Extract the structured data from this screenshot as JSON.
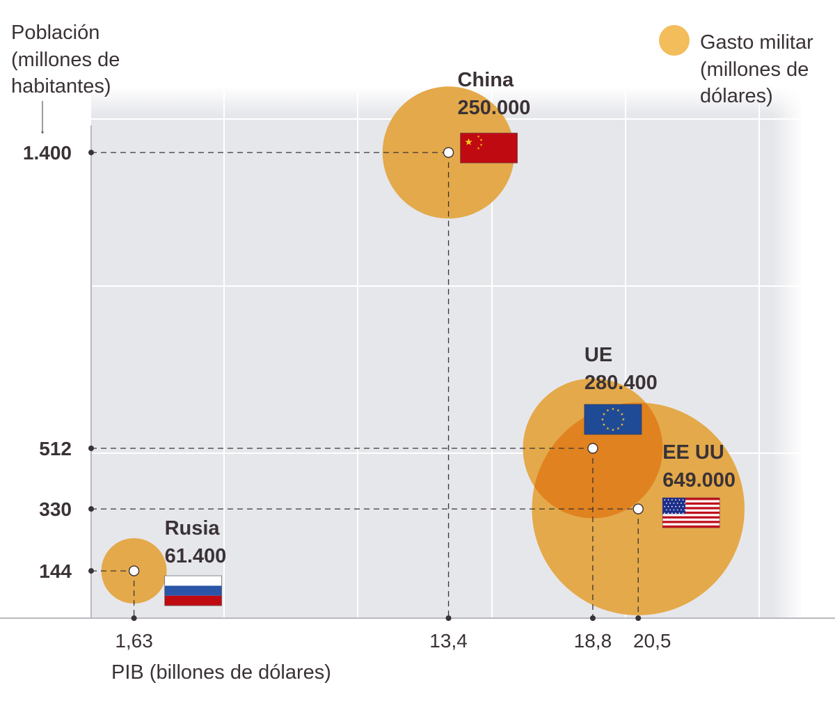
{
  "chart_data": {
    "type": "scatter",
    "subtype": "bubble",
    "title": "",
    "xlabel": "PIB (billones de dólares)",
    "ylabel": [
      "Población",
      "(millones de",
      "habitantes)"
    ],
    "size_legend": [
      "Gasto militar",
      "(millones de",
      "dólares)"
    ],
    "xlim": [
      0,
      26.3
    ],
    "ylim": [
      0,
      1580
    ],
    "grid": true,
    "legend_position": "top-right",
    "colors": {
      "bubble": "#e4a94a",
      "bubble_overlap": "#e0821f",
      "legend_dot": "#f3bd5c",
      "plot_bg": "#e6e7eb",
      "gridline": "#ffffff",
      "text": "#3a3236"
    },
    "points": [
      {
        "name": "China",
        "x": 13.4,
        "x_label": "13,4",
        "y": 1400,
        "y_label": "1.400",
        "size": 250000,
        "size_label": "250.000",
        "flag": "china-flag"
      },
      {
        "name": "UE",
        "x": 18.8,
        "x_label": "18,8",
        "y": 512,
        "y_label": "512",
        "size": 280400,
        "size_label": "280.400",
        "flag": "eu-flag"
      },
      {
        "name": "EE UU",
        "x": 20.5,
        "x_label": "20,5",
        "y": 330,
        "y_label": "330",
        "size": 649000,
        "size_label": "649.000",
        "flag": "usa-flag"
      },
      {
        "name": "Rusia",
        "x": 1.63,
        "x_label": "1,63",
        "y": 144,
        "y_label": "144",
        "size": 61400,
        "size_label": "61.400",
        "flag": "russia-flag"
      }
    ]
  }
}
